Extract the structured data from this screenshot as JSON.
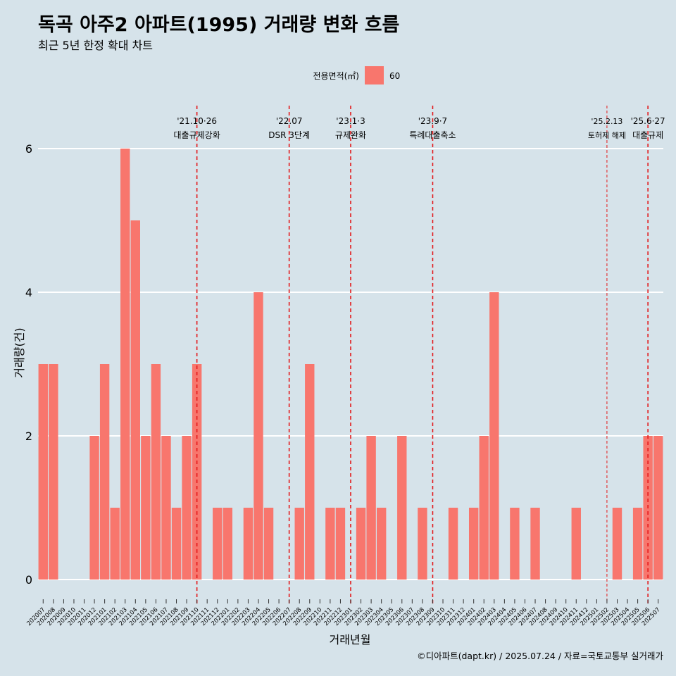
{
  "chart_data": {
    "type": "bar",
    "title": "독곡 아주2 아파트(1995) 거래량 변화 흐름",
    "subtitle": "최근 5년 한정 확대 차트",
    "xlabel": "거래년월",
    "ylabel": "거래량(건)",
    "ylim": [
      0,
      6.3
    ],
    "yticks": [
      0,
      2,
      4,
      6
    ],
    "grid": true,
    "legend": {
      "title": "전용면적(㎡)",
      "position": "top",
      "entries": [
        {
          "label": "60",
          "color": "#f8766d"
        }
      ]
    },
    "categories": [
      "202007",
      "202008",
      "202009",
      "202010",
      "202011",
      "202012",
      "202101",
      "202102",
      "202103",
      "202104",
      "202105",
      "202106",
      "202107",
      "202108",
      "202109",
      "202110",
      "202111",
      "202112",
      "202201",
      "202202",
      "202203",
      "202204",
      "202205",
      "202206",
      "202207",
      "202208",
      "202209",
      "202210",
      "202211",
      "202212",
      "202301",
      "202302",
      "202303",
      "202304",
      "202305",
      "202306",
      "202307",
      "202308",
      "202309",
      "202310",
      "202311",
      "202312",
      "202401",
      "202402",
      "202403",
      "202404",
      "202405",
      "202406",
      "202407",
      "202408",
      "202409",
      "202410",
      "202411",
      "202412",
      "202501",
      "202502",
      "202503",
      "202504",
      "202505",
      "202506",
      "202507"
    ],
    "series": [
      {
        "name": "60",
        "color": "#f8766d",
        "values": [
          3,
          3,
          0,
          0,
          0,
          2,
          3,
          1,
          6,
          5,
          2,
          3,
          2,
          1,
          2,
          3,
          0,
          1,
          1,
          0,
          1,
          4,
          1,
          0,
          0,
          1,
          3,
          0,
          1,
          1,
          0,
          1,
          2,
          1,
          0,
          2,
          0,
          1,
          0,
          0,
          1,
          0,
          1,
          2,
          4,
          0,
          1,
          0,
          1,
          0,
          0,
          0,
          1,
          0,
          0,
          0,
          1,
          0,
          1,
          2,
          2
        ]
      }
    ],
    "events": [
      {
        "id": "e1",
        "category": "202110",
        "date": "'21.10·26",
        "label": "대출규제강화",
        "style": "bold"
      },
      {
        "id": "e2",
        "category": "202207",
        "date": "'22.07",
        "label": "DSR 3단계",
        "style": "bold"
      },
      {
        "id": "e3",
        "category": "202301",
        "date": "'23.1·3",
        "label": "규제완화",
        "style": "bold"
      },
      {
        "id": "e4",
        "category": "202309",
        "date": "'23.9·7",
        "label": "특례대출축소",
        "style": "bold"
      },
      {
        "id": "e5",
        "category": "202502",
        "date": "'25.2.13",
        "label": "토허제 해제",
        "style": "thin"
      },
      {
        "id": "e6",
        "category": "202506",
        "date": "'25.6·27",
        "label": "대출규제",
        "style": "bold"
      }
    ],
    "event_line_color": "#e31a1c"
  },
  "caption": "©디아파트(dapt.kr) / 2025.07.24 / 자료=국토교통부 실거래가"
}
